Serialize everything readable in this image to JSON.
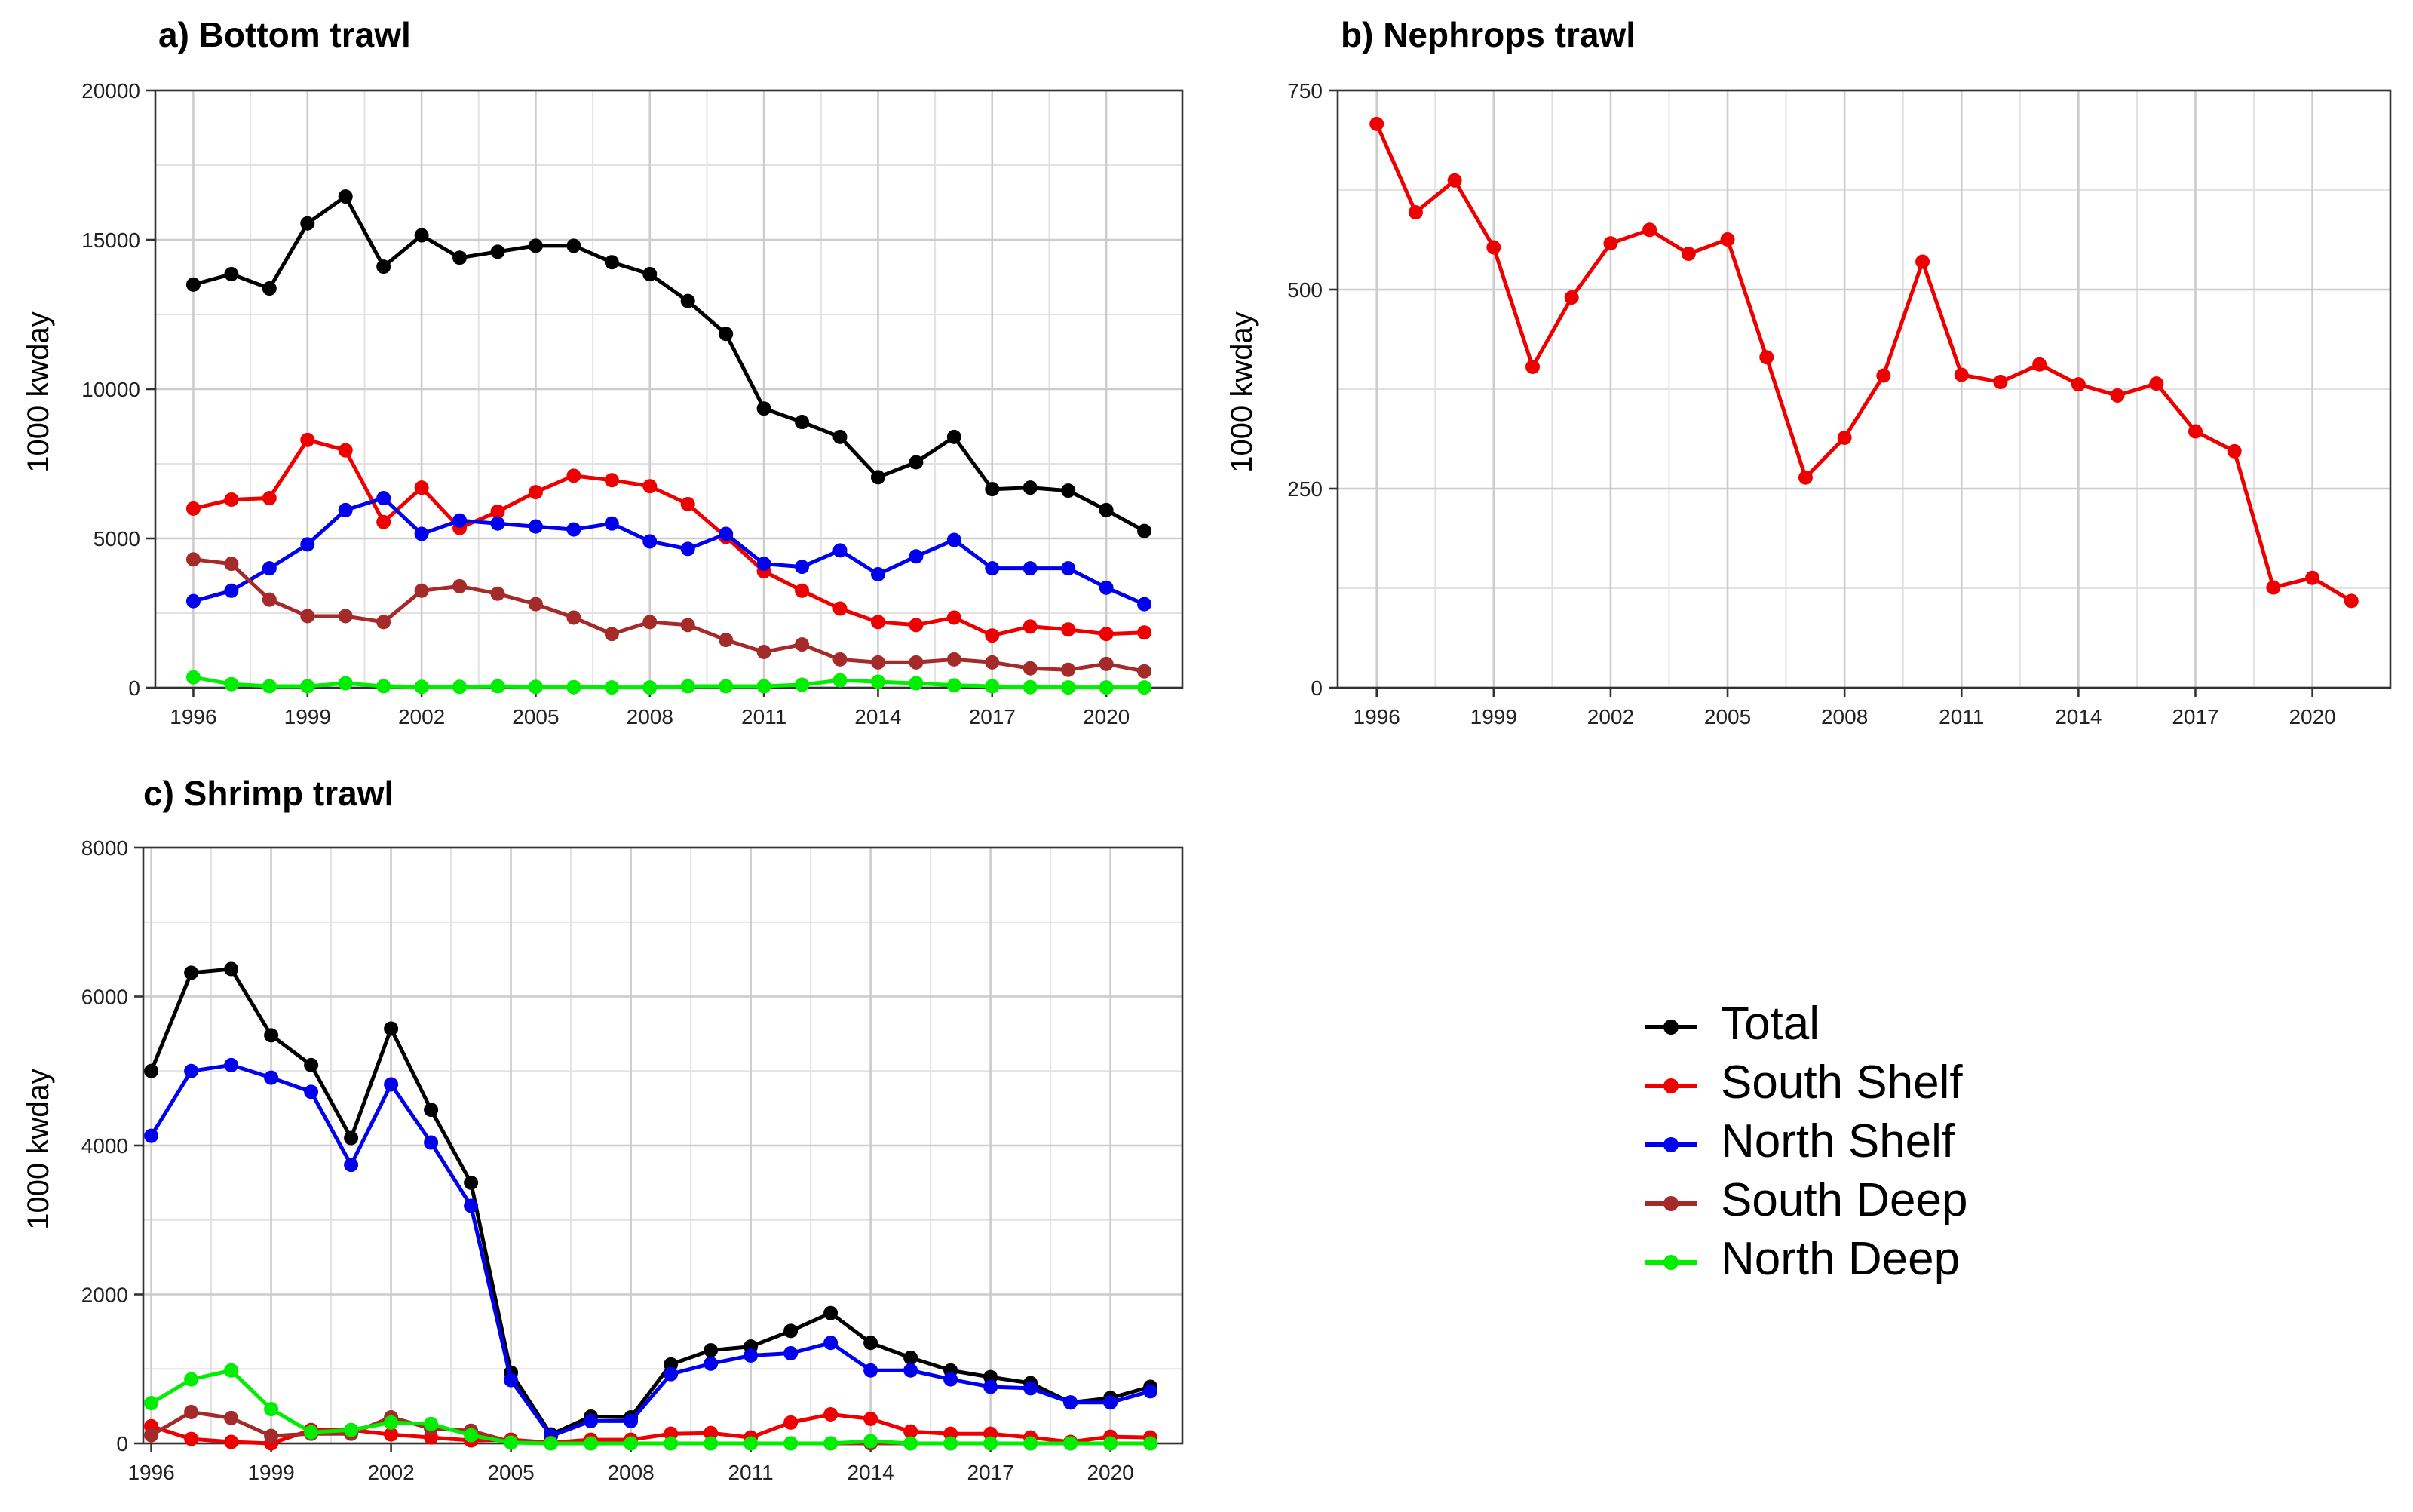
{
  "legend": {
    "items": [
      {
        "label": "Total",
        "color": "#000000"
      },
      {
        "label": "South Shelf",
        "color": "#ee0000"
      },
      {
        "label": "North Shelf",
        "color": "#0000ee"
      },
      {
        "label": "South Deep",
        "color": "#a52a2a"
      },
      {
        "label": "North Deep",
        "color": "#00ee00"
      }
    ]
  },
  "chart_data": [
    {
      "type": "line",
      "title": "a) Bottom trawl",
      "ylabel": "1000 kwday",
      "xlabel": "",
      "xlim": [
        1995,
        2022
      ],
      "ylim": [
        0,
        20000
      ],
      "xticks": [
        1996,
        1999,
        2002,
        2005,
        2008,
        2011,
        2014,
        2017,
        2020
      ],
      "yticks": [
        0,
        5000,
        10000,
        15000,
        20000
      ],
      "grid": true,
      "x": [
        1996,
        1997,
        1998,
        1999,
        2000,
        2001,
        2002,
        2003,
        2004,
        2005,
        2006,
        2007,
        2008,
        2009,
        2010,
        2011,
        2012,
        2013,
        2014,
        2015,
        2016,
        2017,
        2018,
        2019,
        2020,
        2021
      ],
      "series": [
        {
          "name": "Total",
          "color": "#000000",
          "values": [
            13500,
            13850,
            13370,
            15550,
            16450,
            14100,
            15150,
            14400,
            14600,
            14800,
            14800,
            14250,
            13850,
            12950,
            11850,
            9350,
            8900,
            8400,
            7050,
            7550,
            8400,
            6650,
            6700,
            6600,
            5950,
            5250
          ]
        },
        {
          "name": "South Shelf",
          "color": "#ee0000",
          "values": [
            6000,
            6300,
            6350,
            8300,
            7950,
            5550,
            6700,
            5350,
            5900,
            6550,
            7100,
            6950,
            6750,
            6150,
            5050,
            3900,
            3250,
            2650,
            2200,
            2100,
            2350,
            1750,
            2050,
            1950,
            1800,
            1850
          ]
        },
        {
          "name": "North Shelf",
          "color": "#0000ee",
          "values": [
            2900,
            3250,
            4000,
            4800,
            5950,
            6350,
            5150,
            5600,
            5500,
            5400,
            5300,
            5500,
            4900,
            4650,
            5150,
            4150,
            4050,
            4600,
            3800,
            4400,
            4950,
            4000,
            4000,
            4000,
            3350,
            2800
          ]
        },
        {
          "name": "South Deep",
          "color": "#a52a2a",
          "values": [
            4300,
            4150,
            2950,
            2400,
            2400,
            2200,
            3250,
            3400,
            3150,
            2800,
            2350,
            1800,
            2200,
            2100,
            1600,
            1200,
            1450,
            950,
            850,
            850,
            950,
            850,
            650,
            600,
            800,
            550
          ]
        },
        {
          "name": "North Deep",
          "color": "#00ee00",
          "values": [
            350,
            120,
            50,
            50,
            150,
            50,
            30,
            30,
            50,
            30,
            20,
            10,
            10,
            50,
            50,
            50,
            100,
            250,
            200,
            150,
            80,
            50,
            20,
            10,
            10,
            10
          ]
        }
      ]
    },
    {
      "type": "line",
      "title": "b) Nephrops trawl",
      "ylabel": "1000 kwday",
      "xlabel": "",
      "xlim": [
        1995,
        2022
      ],
      "ylim": [
        0,
        750
      ],
      "xticks": [
        1996,
        1999,
        2002,
        2005,
        2008,
        2011,
        2014,
        2017,
        2020
      ],
      "yticks": [
        0,
        250,
        500,
        750
      ],
      "grid": true,
      "x": [
        1996,
        1997,
        1998,
        1999,
        2000,
        2001,
        2002,
        2003,
        2004,
        2005,
        2006,
        2007,
        2008,
        2009,
        2010,
        2011,
        2012,
        2013,
        2014,
        2015,
        2016,
        2017,
        2018,
        2019,
        2020,
        2021
      ],
      "series": [
        {
          "name": "South Shelf",
          "color": "#ee0000",
          "values": [
            708,
            597,
            637,
            553,
            403,
            490,
            558,
            575,
            545,
            563,
            415,
            264,
            314,
            392,
            535,
            393,
            384,
            406,
            381,
            367,
            382,
            322,
            297,
            126,
            138,
            109
          ]
        }
      ]
    },
    {
      "type": "line",
      "title": "c) Shrimp trawl",
      "ylabel": "1000 kwday",
      "xlabel": "",
      "xlim": [
        1995.8,
        2021.8
      ],
      "ylim": [
        0,
        8000
      ],
      "xticks": [
        1996,
        1999,
        2002,
        2005,
        2008,
        2011,
        2014,
        2017,
        2020
      ],
      "yticks": [
        0,
        2000,
        4000,
        6000,
        8000
      ],
      "grid": true,
      "x": [
        1996,
        1997,
        1998,
        1999,
        2000,
        2001,
        2002,
        2003,
        2004,
        2005,
        2006,
        2007,
        2008,
        2009,
        2010,
        2011,
        2012,
        2013,
        2014,
        2015,
        2016,
        2017,
        2018,
        2019,
        2020,
        2021
      ],
      "series": [
        {
          "name": "Total",
          "color": "#000000",
          "values": [
            5000,
            6320,
            6370,
            5480,
            5080,
            4100,
            5570,
            4480,
            3500,
            950,
            120,
            360,
            350,
            1060,
            1250,
            1300,
            1510,
            1750,
            1350,
            1150,
            980,
            890,
            810,
            550,
            610,
            760
          ]
        },
        {
          "name": "North Shelf",
          "color": "#0000ee",
          "values": [
            4130,
            5000,
            5080,
            4910,
            4720,
            3740,
            4820,
            4040,
            3190,
            850,
            100,
            300,
            300,
            930,
            1070,
            1180,
            1210,
            1350,
            980,
            980,
            860,
            760,
            740,
            550,
            550,
            700
          ]
        },
        {
          "name": "South Shelf",
          "color": "#ee0000",
          "values": [
            230,
            60,
            20,
            0,
            180,
            180,
            120,
            80,
            40,
            50,
            10,
            50,
            50,
            130,
            140,
            80,
            280,
            390,
            330,
            160,
            130,
            130,
            80,
            20,
            90,
            80
          ]
        },
        {
          "name": "South Deep",
          "color": "#a52a2a",
          "values": [
            110,
            420,
            340,
            100,
            130,
            130,
            350,
            200,
            170,
            20,
            0,
            0,
            0,
            0,
            0,
            0,
            0,
            0,
            0,
            0,
            0,
            0,
            0,
            0,
            0,
            0
          ]
        },
        {
          "name": "North Deep",
          "color": "#00ee00",
          "values": [
            540,
            860,
            980,
            460,
            150,
            180,
            280,
            260,
            110,
            10,
            0,
            0,
            0,
            0,
            0,
            0,
            0,
            0,
            30,
            0,
            0,
            0,
            0,
            0,
            0,
            0
          ]
        }
      ]
    }
  ]
}
